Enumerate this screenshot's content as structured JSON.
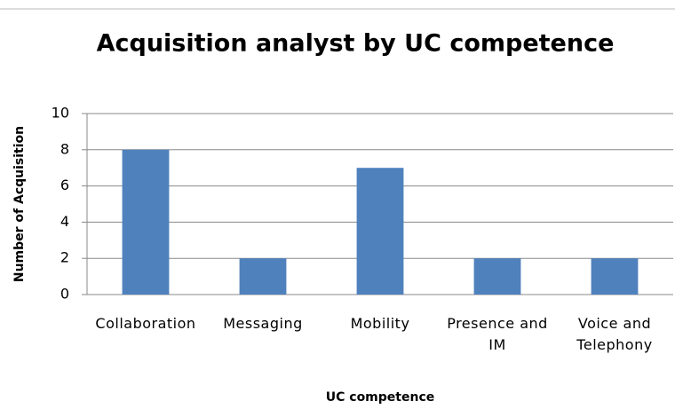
{
  "chart_data": {
    "type": "bar",
    "title": "Acquisition analyst by UC competence",
    "x_label": "UC competence",
    "y_label": "Number of Acquisition",
    "categories": [
      "Collaboration",
      "Messaging",
      "Mobility",
      "Presence and IM",
      "Voice and Telephony"
    ],
    "values": [
      8,
      2,
      7,
      2,
      2
    ],
    "color": "#4f81bd",
    "ylim": [
      0,
      10
    ],
    "yticks": [
      0,
      2,
      4,
      6,
      8,
      10
    ],
    "grid": true
  }
}
